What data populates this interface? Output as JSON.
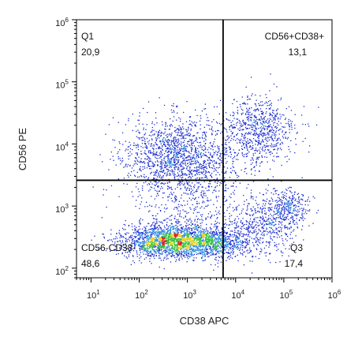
{
  "chart_data": {
    "type": "scatter",
    "xlabel": "CD38 APC",
    "ylabel": "CD56 PE",
    "x_scale": "log",
    "y_scale": "log",
    "xlim": [
      5,
      1000000
    ],
    "ylim": [
      70,
      1000000
    ],
    "x_ticks": [
      {
        "value": 10,
        "base": "10",
        "exp": "1"
      },
      {
        "value": 100,
        "base": "10",
        "exp": "2"
      },
      {
        "value": 1000,
        "base": "10",
        "exp": "3"
      },
      {
        "value": 10000,
        "base": "10",
        "exp": "4"
      },
      {
        "value": 100000,
        "base": "10",
        "exp": "5"
      },
      {
        "value": 1000000,
        "base": "10",
        "exp": "6"
      }
    ],
    "y_ticks": [
      {
        "value": 100,
        "base": "10",
        "exp": "2"
      },
      {
        "value": 1000,
        "base": "10",
        "exp": "3"
      },
      {
        "value": 10000,
        "base": "10",
        "exp": "4"
      },
      {
        "value": 100000,
        "base": "10",
        "exp": "5"
      },
      {
        "value": 1000000,
        "base": "10",
        "exp": "6"
      }
    ],
    "gate": {
      "x": 5500,
      "y": 2600
    },
    "quadrants": [
      {
        "name": "Q1",
        "value": "20,9",
        "corner": "top-left"
      },
      {
        "name": "CD56+CD38+",
        "value": "13,1",
        "corner": "top-right"
      },
      {
        "name": "CD56-CD38-",
        "value": "48,6",
        "corner": "bottom-left"
      },
      {
        "name": "Q3",
        "value": "17,4",
        "corner": "bottom-right"
      }
    ],
    "populations": [
      {
        "x": 600,
        "y": 7000,
        "sx": 0.55,
        "sy": 0.3,
        "count": 1300
      },
      {
        "x": 28000,
        "y": 16000,
        "sx": 0.4,
        "sy": 0.28,
        "count": 750
      },
      {
        "x": 450,
        "y": 280,
        "sx": 0.5,
        "sy": 0.13,
        "count": 2000
      },
      {
        "x": 4000,
        "y": 260,
        "sx": 0.35,
        "sy": 0.12,
        "count": 650
      },
      {
        "x": 40000,
        "y": 500,
        "sx": 0.35,
        "sy": 0.25,
        "count": 500
      },
      {
        "x": 130000,
        "y": 1000,
        "sx": 0.2,
        "sy": 0.15,
        "count": 260
      },
      {
        "x": 1200,
        "y": 1500,
        "sx": 0.7,
        "sy": 0.45,
        "count": 650
      }
    ],
    "density_colors": [
      "#1a2ccf",
      "#2f8de0",
      "#2fbf3a",
      "#e8d11e",
      "#e02020"
    ],
    "gate_color": "#000000"
  }
}
